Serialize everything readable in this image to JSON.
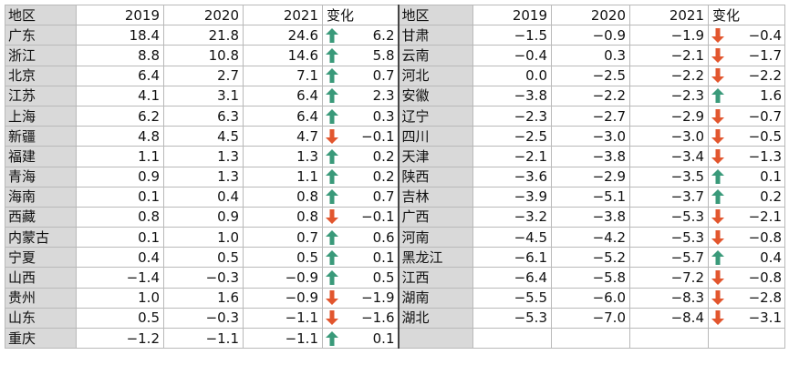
{
  "header": {
    "region": "地区",
    "y2019": "2019",
    "y2020": "2020",
    "y2021": "2021",
    "change": "变化"
  },
  "colors": {
    "up": "#3a9a7a",
    "down": "#e2562e",
    "region_bg": "#d9d9d9"
  },
  "left": [
    {
      "region": "广东",
      "v2019": "18.4",
      "v2020": "21.8",
      "v2021": "24.6",
      "dir": "up",
      "change": "6.2"
    },
    {
      "region": "浙江",
      "v2019": "8.8",
      "v2020": "10.8",
      "v2021": "14.6",
      "dir": "up",
      "change": "5.8"
    },
    {
      "region": "北京",
      "v2019": "6.4",
      "v2020": "2.7",
      "v2021": "7.1",
      "dir": "up",
      "change": "0.7"
    },
    {
      "region": "江苏",
      "v2019": "4.1",
      "v2020": "3.1",
      "v2021": "6.4",
      "dir": "up",
      "change": "2.3"
    },
    {
      "region": "上海",
      "v2019": "6.2",
      "v2020": "6.3",
      "v2021": "6.4",
      "dir": "up",
      "change": "0.3"
    },
    {
      "region": "新疆",
      "v2019": "4.8",
      "v2020": "4.5",
      "v2021": "4.7",
      "dir": "down",
      "change": "−0.1"
    },
    {
      "region": "福建",
      "v2019": "1.1",
      "v2020": "1.3",
      "v2021": "1.3",
      "dir": "up",
      "change": "0.2"
    },
    {
      "region": "青海",
      "v2019": "0.9",
      "v2020": "1.3",
      "v2021": "1.1",
      "dir": "up",
      "change": "0.2"
    },
    {
      "region": "海南",
      "v2019": "0.1",
      "v2020": "0.4",
      "v2021": "0.8",
      "dir": "up",
      "change": "0.7"
    },
    {
      "region": "西藏",
      "v2019": "0.8",
      "v2020": "0.9",
      "v2021": "0.8",
      "dir": "down",
      "change": "−0.1"
    },
    {
      "region": "内蒙古",
      "v2019": "0.1",
      "v2020": "1.0",
      "v2021": "0.7",
      "dir": "up",
      "change": "0.6"
    },
    {
      "region": "宁夏",
      "v2019": "0.4",
      "v2020": "0.5",
      "v2021": "0.5",
      "dir": "up",
      "change": "0.1"
    },
    {
      "region": "山西",
      "v2019": "−1.4",
      "v2020": "−0.3",
      "v2021": "−0.9",
      "dir": "up",
      "change": "0.5"
    },
    {
      "region": "贵州",
      "v2019": "1.0",
      "v2020": "1.6",
      "v2021": "−0.9",
      "dir": "down",
      "change": "−1.9"
    },
    {
      "region": "山东",
      "v2019": "0.5",
      "v2020": "−0.3",
      "v2021": "−1.1",
      "dir": "down",
      "change": "−1.6"
    },
    {
      "region": "重庆",
      "v2019": "−1.2",
      "v2020": "−1.1",
      "v2021": "−1.1",
      "dir": "up",
      "change": "0.1"
    }
  ],
  "right": [
    {
      "region": "甘肃",
      "v2019": "−1.5",
      "v2020": "−0.9",
      "v2021": "−1.9",
      "dir": "down",
      "change": "−0.4"
    },
    {
      "region": "云南",
      "v2019": "−0.4",
      "v2020": "0.3",
      "v2021": "−2.1",
      "dir": "down",
      "change": "−1.7"
    },
    {
      "region": "河北",
      "v2019": "0.0",
      "v2020": "−2.5",
      "v2021": "−2.2",
      "dir": "down",
      "change": "−2.2"
    },
    {
      "region": "安徽",
      "v2019": "−3.8",
      "v2020": "−2.2",
      "v2021": "−2.3",
      "dir": "up",
      "change": "1.6"
    },
    {
      "region": "辽宁",
      "v2019": "−2.3",
      "v2020": "−2.7",
      "v2021": "−2.9",
      "dir": "down",
      "change": "−0.7"
    },
    {
      "region": "四川",
      "v2019": "−2.5",
      "v2020": "−3.0",
      "v2021": "−3.0",
      "dir": "down",
      "change": "−0.5"
    },
    {
      "region": "天津",
      "v2019": "−2.1",
      "v2020": "−3.8",
      "v2021": "−3.4",
      "dir": "down",
      "change": "−1.3"
    },
    {
      "region": "陕西",
      "v2019": "−3.6",
      "v2020": "−2.9",
      "v2021": "−3.5",
      "dir": "up",
      "change": "0.1"
    },
    {
      "region": "吉林",
      "v2019": "−3.9",
      "v2020": "−5.1",
      "v2021": "−3.7",
      "dir": "up",
      "change": "0.2"
    },
    {
      "region": "广西",
      "v2019": "−3.2",
      "v2020": "−3.8",
      "v2021": "−5.3",
      "dir": "down",
      "change": "−2.1"
    },
    {
      "region": "河南",
      "v2019": "−4.5",
      "v2020": "−4.2",
      "v2021": "−5.3",
      "dir": "down",
      "change": "−0.8"
    },
    {
      "region": "黑龙江",
      "v2019": "−6.1",
      "v2020": "−5.2",
      "v2021": "−5.7",
      "dir": "up",
      "change": "0.4"
    },
    {
      "region": "江西",
      "v2019": "−6.4",
      "v2020": "−5.8",
      "v2021": "−7.2",
      "dir": "down",
      "change": "−0.8"
    },
    {
      "region": "湖南",
      "v2019": "−5.5",
      "v2020": "−6.0",
      "v2021": "−8.3",
      "dir": "down",
      "change": "−2.8"
    },
    {
      "region": "湖北",
      "v2019": "−5.3",
      "v2020": "−7.0",
      "v2021": "−8.4",
      "dir": "down",
      "change": "−3.1"
    },
    {
      "region": "",
      "v2019": "",
      "v2020": "",
      "v2021": "",
      "dir": "",
      "change": ""
    }
  ]
}
